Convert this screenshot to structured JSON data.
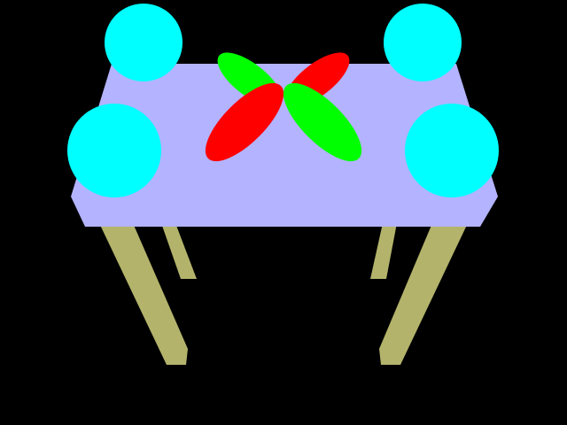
{
  "scene": {
    "background_color": "#000000",
    "objects": [
      {
        "name": "table-top",
        "color": "#b3b3ff"
      },
      {
        "name": "table-legs",
        "color": "#b3b36b"
      },
      {
        "name": "corner-spheres",
        "count": 4,
        "color": "#00ffff"
      },
      {
        "name": "cross-propeller",
        "colors": [
          "#ff0000",
          "#00ff00"
        ]
      }
    ]
  }
}
